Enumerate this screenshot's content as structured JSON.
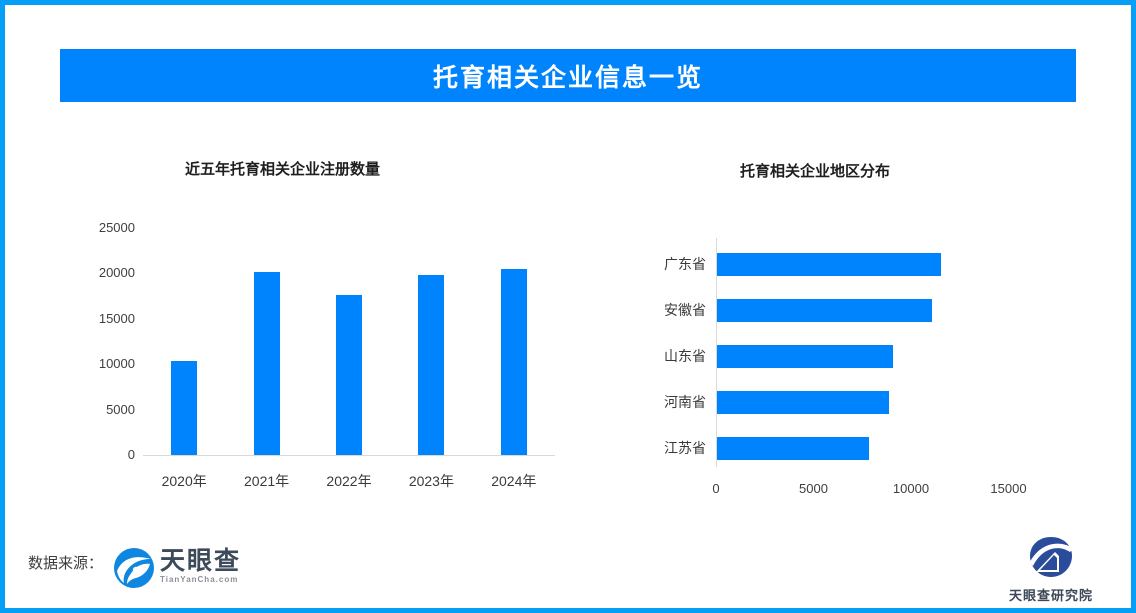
{
  "banner": {
    "title": "托育相关企业信息一览"
  },
  "chart_data": [
    {
      "type": "bar",
      "title": "近五年托育相关企业注册数量",
      "categories": [
        "2020年",
        "2021年",
        "2022年",
        "2023年",
        "2024年"
      ],
      "values": [
        10300,
        20200,
        17600,
        19800,
        20500
      ],
      "xlabel": "",
      "ylabel": "",
      "ylim": [
        0,
        25000
      ],
      "yticks": [
        0,
        5000,
        10000,
        15000,
        20000,
        25000
      ],
      "grid": false,
      "legend": false
    },
    {
      "type": "bar-horizontal",
      "title": "托育相关企业地区分布",
      "categories": [
        "广东省",
        "安徽省",
        "山东省",
        "河南省",
        "江苏省"
      ],
      "values": [
        11500,
        11000,
        9000,
        8800,
        7800
      ],
      "xlabel": "",
      "ylabel": "",
      "xlim": [
        0,
        15900
      ],
      "xticks": [
        0,
        5000,
        10000,
        15000
      ],
      "grid": false,
      "legend": false
    }
  ],
  "footer": {
    "source_label": "数据来源：",
    "tianyancha_wordmark": "天眼查",
    "tianyancha_domain": "TianYanCha.com",
    "research_institute": "天眼查研究院"
  },
  "colors": {
    "bar_blue": "#0084FE",
    "banner_blue": "#0084FE",
    "frame_blue": "#05A0F5",
    "tyc_logo_blue": "#0F86DF",
    "research_navy": "#2A4C9B",
    "axis_gray": "#d9d9d9"
  }
}
